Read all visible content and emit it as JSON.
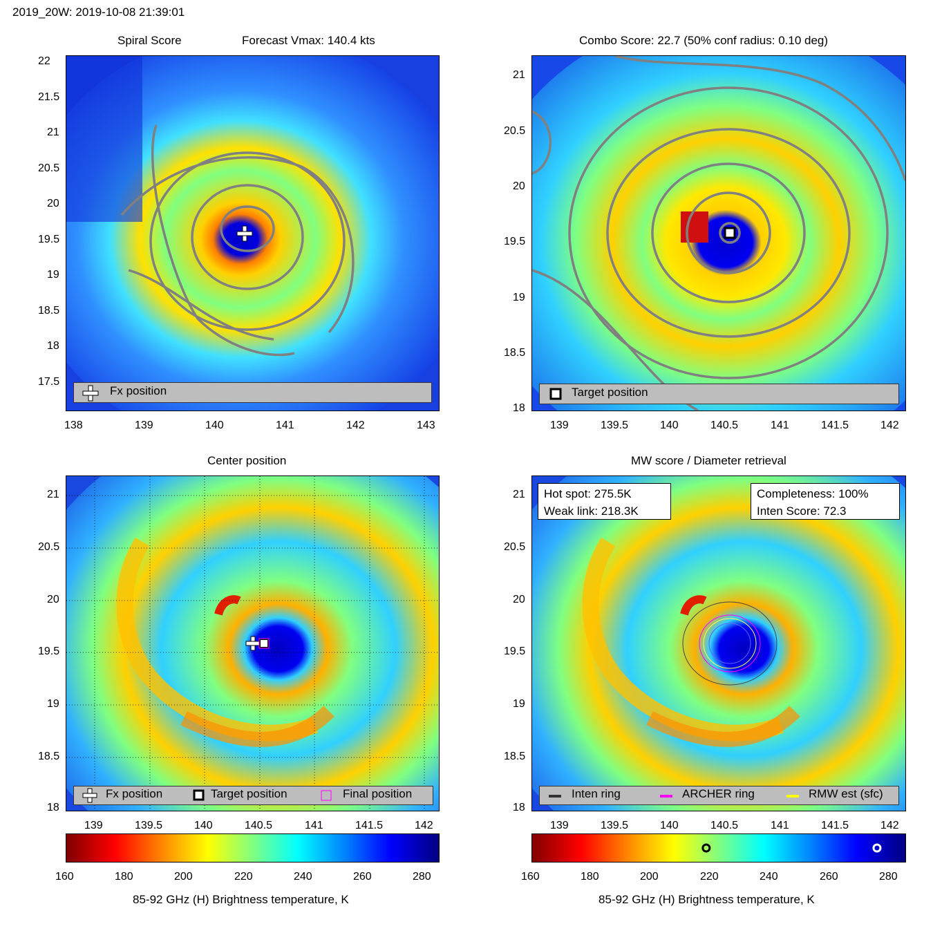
{
  "header": {
    "title": "2019_20W: 2019-10-08 21:39:01"
  },
  "panels": {
    "spiral": {
      "title_left": "Spiral Score",
      "title_right": "Forecast Vmax: 140.4 kts",
      "legend_fx": "Fx position"
    },
    "combo": {
      "title": "Combo Score: 22.7  (50% conf radius: 0.10 deg)",
      "legend_target": "Target position"
    },
    "center": {
      "title": "Center position",
      "legend_fx": "Fx position",
      "legend_target": "Target position",
      "legend_final": "Final position"
    },
    "mw": {
      "title": "MW score / Diameter retrieval",
      "hot_spot": "Hot spot: 275.5K",
      "weak_link": "Weak link: 218.3K",
      "completeness": "Completeness: 100%",
      "inten_score": "Inten Score: 72.3",
      "legend_inten": "Inten ring",
      "legend_archer": "ARCHER ring",
      "legend_rmw": "RMW est (sfc)"
    }
  },
  "colorbar": {
    "label": "85-92 GHz (H) Brightness temperature, K",
    "ticks": [
      "160",
      "180",
      "200",
      "220",
      "240",
      "260",
      "280"
    ],
    "markers": {
      "weak_link_K": 218.3,
      "hot_spot_K": 275.5
    }
  },
  "chart_data": [
    {
      "type": "heatmap",
      "title": "Spiral Score",
      "annotation": "Forecast Vmax: 140.4 kts",
      "xlim": [
        138,
        143.2
      ],
      "ylim": [
        17.1,
        22.2
      ],
      "xticks": [
        "138",
        "139",
        "140",
        "141",
        "142",
        "143"
      ],
      "yticks": [
        "17.5",
        "18",
        "18.5",
        "19",
        "19.5",
        "20",
        "20.5",
        "21",
        "21.5",
        "22"
      ],
      "center": {
        "lon": 140.5,
        "lat": 19.6
      },
      "fx_position": {
        "lon": 140.45,
        "lat": 19.58
      }
    },
    {
      "type": "heatmap",
      "title": "Combo Score: 22.7  (50% conf radius: 0.10 deg)",
      "xlim": [
        138.75,
        142.15
      ],
      "ylim": [
        17.95,
        21.15
      ],
      "xticks": [
        "139",
        "139.5",
        "140",
        "140.5",
        "141",
        "141.5",
        "142"
      ],
      "yticks": [
        "18",
        "18.5",
        "19",
        "19.5",
        "20",
        "20.5",
        "21"
      ],
      "center": {
        "lon": 140.5,
        "lat": 19.6
      },
      "target_position": {
        "lon": 140.55,
        "lat": 19.58
      }
    },
    {
      "type": "heatmap",
      "title": "Center position",
      "xlim": [
        138.75,
        142.15
      ],
      "ylim": [
        17.97,
        21.15
      ],
      "xticks": [
        "139",
        "139.5",
        "140",
        "140.5",
        "141",
        "141.5",
        "142"
      ],
      "yticks": [
        "18",
        "18.5",
        "19",
        "19.5",
        "20",
        "20.5",
        "21"
      ],
      "center": {
        "lon": 140.5,
        "lat": 19.6
      },
      "fx_position": {
        "lon": 140.45,
        "lat": 19.58
      },
      "target_position": {
        "lon": 140.55,
        "lat": 19.58
      }
    },
    {
      "type": "heatmap",
      "title": "MW score / Diameter retrieval",
      "xlim": [
        138.75,
        142.15
      ],
      "ylim": [
        17.97,
        21.15
      ],
      "xticks": [
        "139",
        "139.5",
        "140",
        "140.5",
        "141",
        "141.5",
        "142"
      ],
      "yticks": [
        "18",
        "18.5",
        "19",
        "19.5",
        "20",
        "20.5",
        "21"
      ],
      "center": {
        "lon": 140.55,
        "lat": 19.58
      },
      "colorbar_range": [
        160,
        285
      ]
    }
  ]
}
